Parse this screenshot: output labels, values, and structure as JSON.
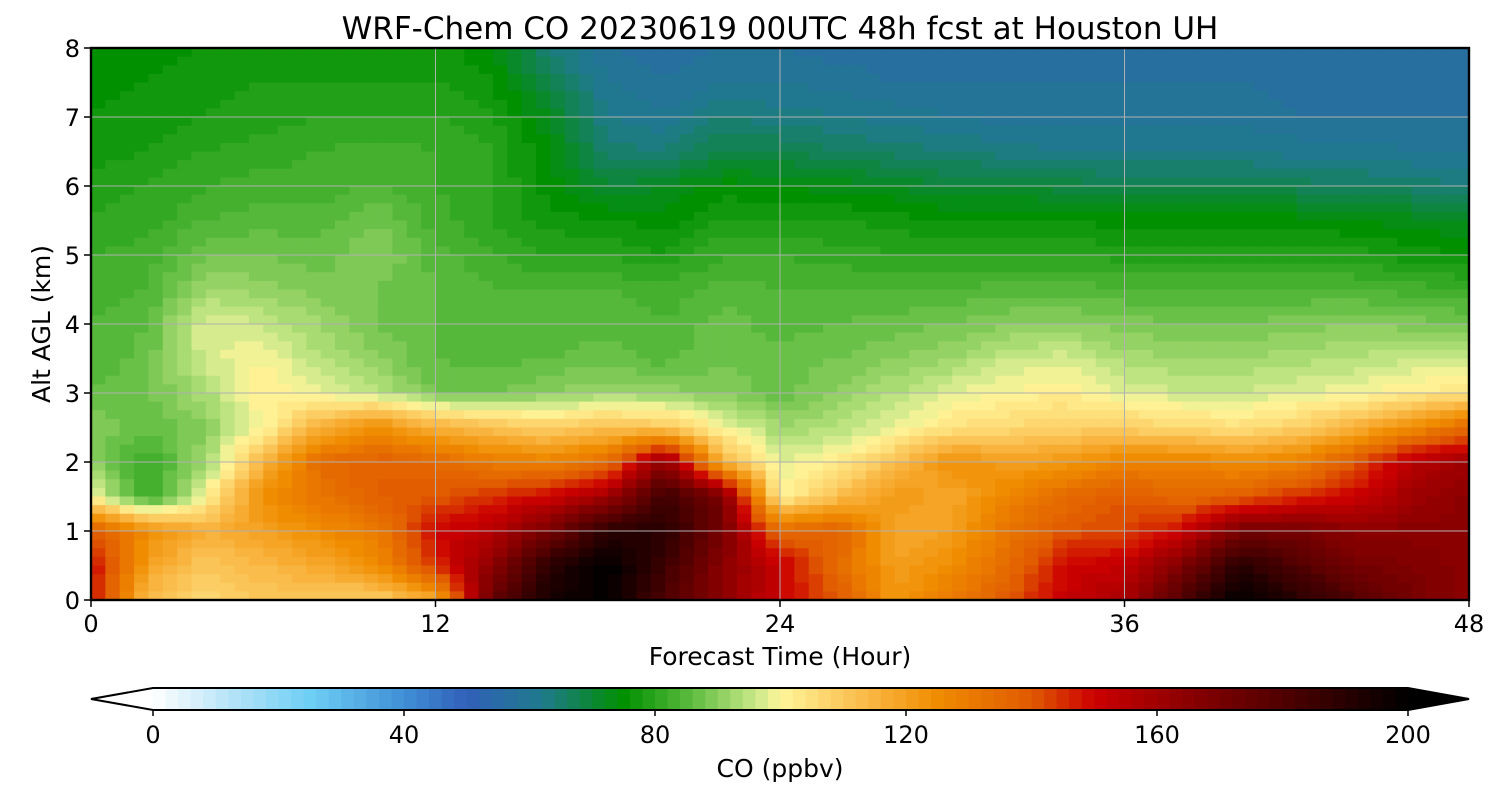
{
  "chart_data": {
    "type": "heatmap",
    "title": "WRF-Chem CO  20230619 00UTC 48h fcst at Houston UH",
    "xlabel": "Forecast Time (Hour)",
    "ylabel": "Alt AGL (km)",
    "xlim": [
      0,
      48
    ],
    "ylim": [
      0,
      8
    ],
    "xticks": [
      0,
      12,
      24,
      36,
      48
    ],
    "yticks": [
      0,
      1,
      2,
      3,
      4,
      5,
      6,
      7,
      8
    ],
    "grid": true,
    "colorbar": {
      "label": "CO  (ppbv)",
      "range": [
        0,
        200
      ],
      "ticks": [
        0,
        40,
        80,
        120,
        160,
        200
      ],
      "extend": "both",
      "placement": "bottom",
      "stops": [
        {
          "v": 0,
          "c": "#ffffff"
        },
        {
          "v": 12,
          "c": "#b8e4f8"
        },
        {
          "v": 25,
          "c": "#6ecff5"
        },
        {
          "v": 40,
          "c": "#3f8fd6"
        },
        {
          "v": 50,
          "c": "#3060b8"
        },
        {
          "v": 62,
          "c": "#1f7a8c"
        },
        {
          "v": 75,
          "c": "#009000"
        },
        {
          "v": 85,
          "c": "#55b83a"
        },
        {
          "v": 96,
          "c": "#c8e888"
        },
        {
          "v": 100,
          "c": "#fff59a"
        },
        {
          "v": 112,
          "c": "#fbc050"
        },
        {
          "v": 125,
          "c": "#f08c00"
        },
        {
          "v": 140,
          "c": "#e05a00"
        },
        {
          "v": 150,
          "c": "#cc0000"
        },
        {
          "v": 165,
          "c": "#8a0000"
        },
        {
          "v": 180,
          "c": "#500000"
        },
        {
          "v": 200,
          "c": "#000000"
        }
      ]
    },
    "x": [
      0,
      2,
      4,
      6,
      8,
      10,
      12,
      14,
      16,
      18,
      20,
      22,
      24,
      26,
      28,
      30,
      32,
      34,
      36,
      38,
      40,
      42,
      44,
      46,
      48
    ],
    "y": [
      0,
      0.5,
      1,
      1.5,
      2,
      2.5,
      3,
      3.5,
      4,
      4.5,
      5,
      5.5,
      6,
      6.5,
      7,
      7.5,
      8
    ],
    "z": [
      [
        150,
        112,
        106,
        110,
        110,
        108,
        118,
        175,
        195,
        200,
        180,
        165,
        150,
        140,
        122,
        130,
        140,
        152,
        158,
        180,
        200,
        190,
        180,
        170,
        165
      ],
      [
        150,
        120,
        110,
        114,
        118,
        125,
        145,
        165,
        190,
        200,
        185,
        165,
        152,
        135,
        120,
        125,
        135,
        150,
        152,
        168,
        190,
        180,
        170,
        168,
        165
      ],
      [
        140,
        125,
        116,
        120,
        125,
        130,
        150,
        155,
        170,
        190,
        190,
        170,
        135,
        138,
        118,
        120,
        132,
        140,
        142,
        150,
        170,
        170,
        165,
        165,
        165
      ],
      [
        100,
        80,
        100,
        125,
        132,
        138,
        140,
        145,
        150,
        160,
        185,
        170,
        100,
        112,
        122,
        118,
        128,
        135,
        140,
        135,
        138,
        145,
        150,
        160,
        165
      ],
      [
        90,
        82,
        92,
        115,
        135,
        138,
        136,
        130,
        128,
        135,
        165,
        115,
        98,
        102,
        112,
        125,
        120,
        122,
        128,
        128,
        125,
        128,
        140,
        155,
        160
      ],
      [
        90,
        86,
        90,
        100,
        116,
        125,
        116,
        112,
        108,
        112,
        110,
        100,
        92,
        94,
        98,
        104,
        106,
        108,
        108,
        106,
        105,
        108,
        115,
        125,
        135
      ],
      [
        86,
        88,
        93,
        102,
        98,
        95,
        88,
        88,
        90,
        92,
        91,
        89,
        87,
        90,
        94,
        98,
        100,
        102,
        98,
        96,
        96,
        98,
        99,
        102,
        104
      ],
      [
        84,
        87,
        97,
        100,
        94,
        90,
        86,
        85,
        86,
        87,
        85,
        88,
        87,
        88,
        90,
        92,
        96,
        97,
        93,
        92,
        92,
        93,
        94,
        96,
        95
      ],
      [
        84,
        86,
        98,
        96,
        92,
        88,
        86,
        85,
        85,
        85,
        84,
        87,
        85,
        86,
        87,
        88,
        90,
        90,
        89,
        88,
        88,
        89,
        90,
        89,
        88
      ],
      [
        83,
        84,
        92,
        91,
        89,
        88,
        86,
        84,
        84,
        84,
        83,
        85,
        84,
        84,
        84,
        84,
        85,
        85,
        84,
        84,
        84,
        84,
        84,
        83,
        82
      ],
      [
        82,
        83,
        88,
        88,
        87,
        90,
        85,
        82,
        80,
        80,
        78,
        82,
        82,
        81,
        80,
        80,
        80,
        80,
        79,
        79,
        79,
        79,
        79,
        77,
        76
      ],
      [
        80,
        81,
        84,
        85,
        85,
        88,
        83,
        80,
        77,
        76,
        75,
        78,
        78,
        78,
        77,
        76,
        76,
        76,
        75,
        75,
        75,
        75,
        74,
        73,
        72
      ],
      [
        79,
        80,
        82,
        83,
        83,
        84,
        82,
        80,
        75,
        70,
        72,
        75,
        74,
        73,
        72,
        70,
        70,
        69,
        68,
        68,
        68,
        67,
        66,
        65,
        64
      ],
      [
        77,
        78,
        80,
        81,
        82,
        83,
        82,
        80,
        74,
        65,
        64,
        68,
        68,
        66,
        65,
        64,
        63,
        62,
        62,
        62,
        62,
        61,
        61,
        60,
        60
      ],
      [
        76,
        77,
        78,
        79,
        80,
        80,
        80,
        78,
        72,
        62,
        60,
        64,
        63,
        62,
        61,
        60,
        59,
        59,
        59,
        59,
        59,
        58,
        58,
        58,
        58
      ],
      [
        75,
        76,
        77,
        78,
        78,
        78,
        78,
        76,
        68,
        60,
        58,
        60,
        60,
        59,
        58,
        58,
        58,
        58,
        58,
        58,
        58,
        57,
        57,
        57,
        57
      ],
      [
        74,
        75,
        76,
        77,
        77,
        77,
        77,
        74,
        64,
        58,
        57,
        58,
        58,
        57,
        57,
        57,
        56,
        57,
        57,
        57,
        57,
        56,
        56,
        56,
        56
      ]
    ]
  }
}
